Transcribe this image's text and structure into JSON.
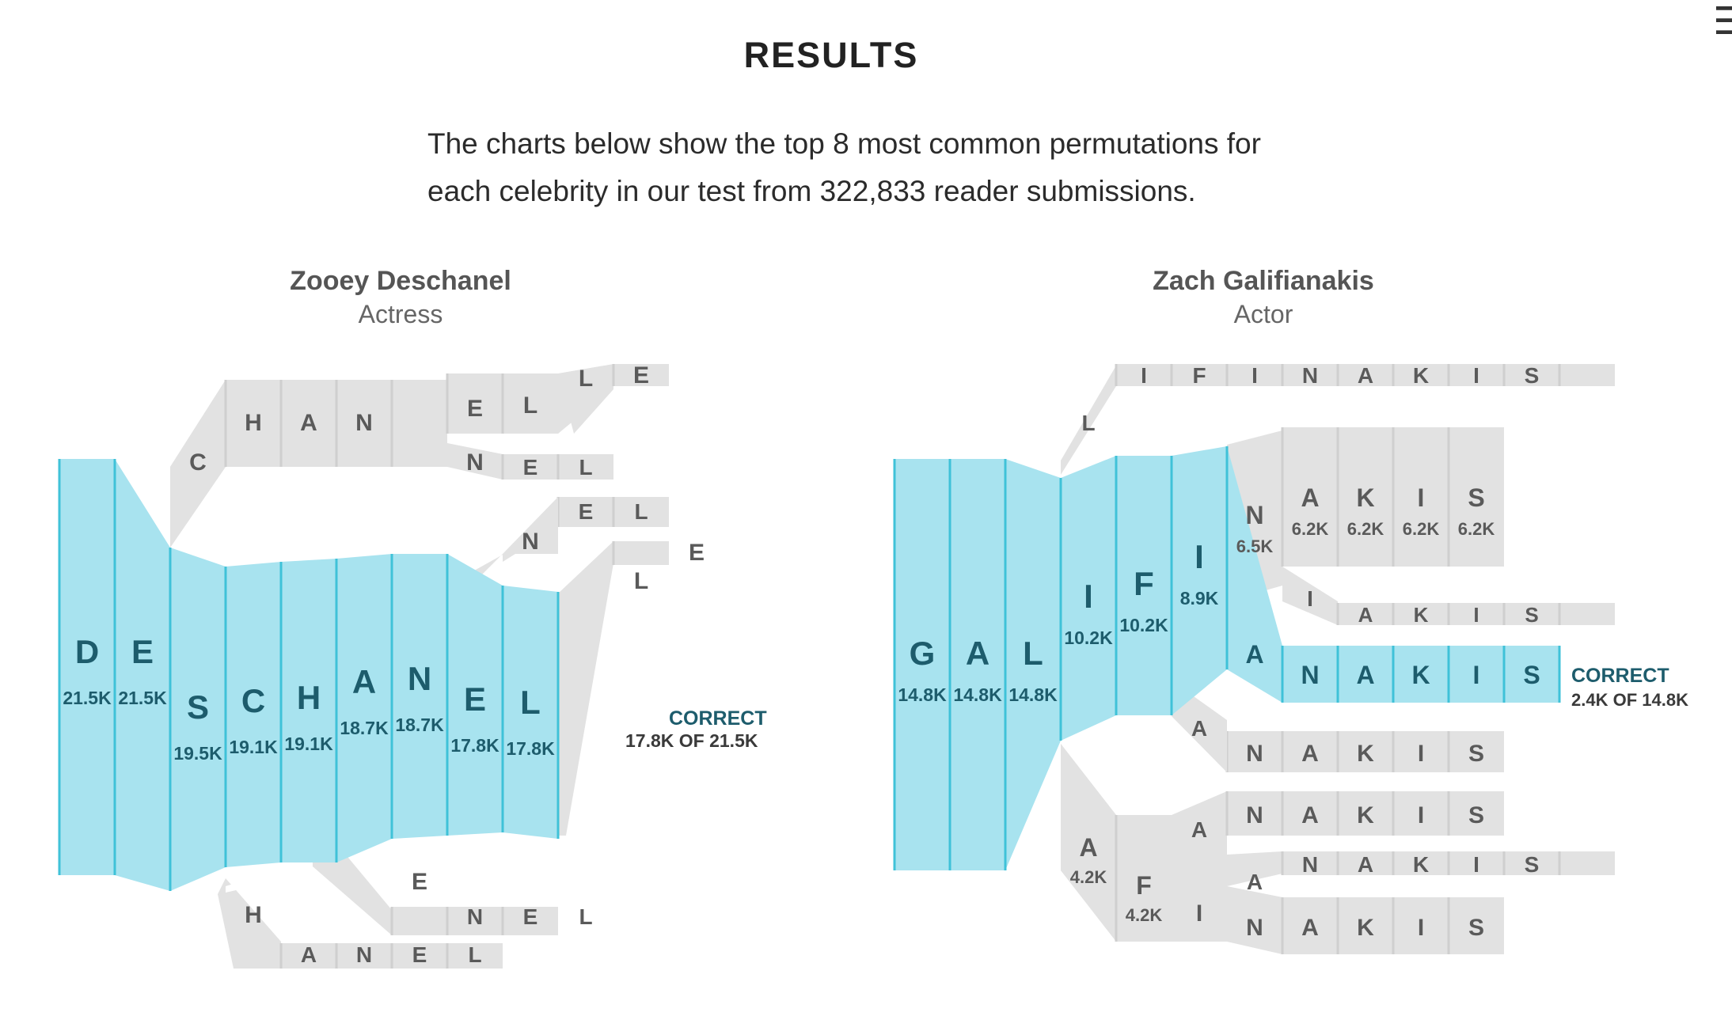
{
  "header": {
    "heading": "RESULTS",
    "intro_line1": "The charts below show the top 8 most common permutations for",
    "intro_line2": "each celebrity in our test from 322,833 reader submissions.",
    "menu_icon": "menu-icon"
  },
  "colors": {
    "correct_fill": "#a8e3ef",
    "correct_stroke": "#3fc2d8",
    "correct_text": "#1d5c6c",
    "other_fill": "#e2e2e2",
    "other_text": "#5a5a5a"
  },
  "chart_data": [
    {
      "type": "tree",
      "celebrity": "Zooey Deschanel",
      "role": "Actress",
      "correct_label": "CORRECT",
      "correct_sub": "17.8K OF 21.5K",
      "correct_path": [
        {
          "letter": "D",
          "count": "21.5K"
        },
        {
          "letter": "E",
          "count": "21.5K"
        },
        {
          "letter": "S",
          "count": "19.5K"
        },
        {
          "letter": "C",
          "count": "19.1K"
        },
        {
          "letter": "H",
          "count": "19.1K"
        },
        {
          "letter": "A",
          "count": "18.7K"
        },
        {
          "letter": "N",
          "count": "18.7K"
        },
        {
          "letter": "E",
          "count": "17.8K"
        },
        {
          "letter": "L",
          "count": "17.8K"
        }
      ],
      "other_paths": [
        {
          "spelling": "DECHANELLE"
        },
        {
          "spelling": "DECHANNEL"
        },
        {
          "spelling": "DESCHANNEL"
        },
        {
          "spelling": "DESCHANELLE"
        },
        {
          "spelling": "DESCHENEL"
        },
        {
          "spelling": "DESHANEL"
        }
      ]
    },
    {
      "type": "tree",
      "celebrity": "Zach Galifianakis",
      "role": "Actor",
      "correct_label": "CORRECT",
      "correct_sub": "2.4K OF 14.8K",
      "correct_path": [
        {
          "letter": "G",
          "count": "14.8K"
        },
        {
          "letter": "A",
          "count": "14.8K"
        },
        {
          "letter": "L",
          "count": "14.8K"
        },
        {
          "letter": "I",
          "count": "10.2K"
        },
        {
          "letter": "F",
          "count": "10.2K"
        },
        {
          "letter": "I",
          "count": "8.9K"
        },
        {
          "letter": "A",
          "count": ""
        },
        {
          "letter": "N",
          "count": ""
        },
        {
          "letter": "A",
          "count": ""
        },
        {
          "letter": "K",
          "count": ""
        },
        {
          "letter": "I",
          "count": ""
        },
        {
          "letter": "S",
          "count": ""
        }
      ],
      "branch_counts": {
        "galifin": "6.5K",
        "a": "6.2K",
        "k": "6.2K",
        "i": "6.2K",
        "s": "6.2K",
        "gala": "4.2K",
        "galaf": "4.2K"
      },
      "other_paths": [
        {
          "spelling": "GALLIFINAKIS"
        },
        {
          "spelling": "GALIFINAKIS"
        },
        {
          "spelling": "GALIFIIAKIS"
        },
        {
          "spelling": "GALIFANAKIS"
        },
        {
          "spelling": "GALAFANAKIS"
        },
        {
          "spelling": "GALAFIANAKIS"
        },
        {
          "spelling": "GALAFINAKIS"
        }
      ]
    }
  ]
}
